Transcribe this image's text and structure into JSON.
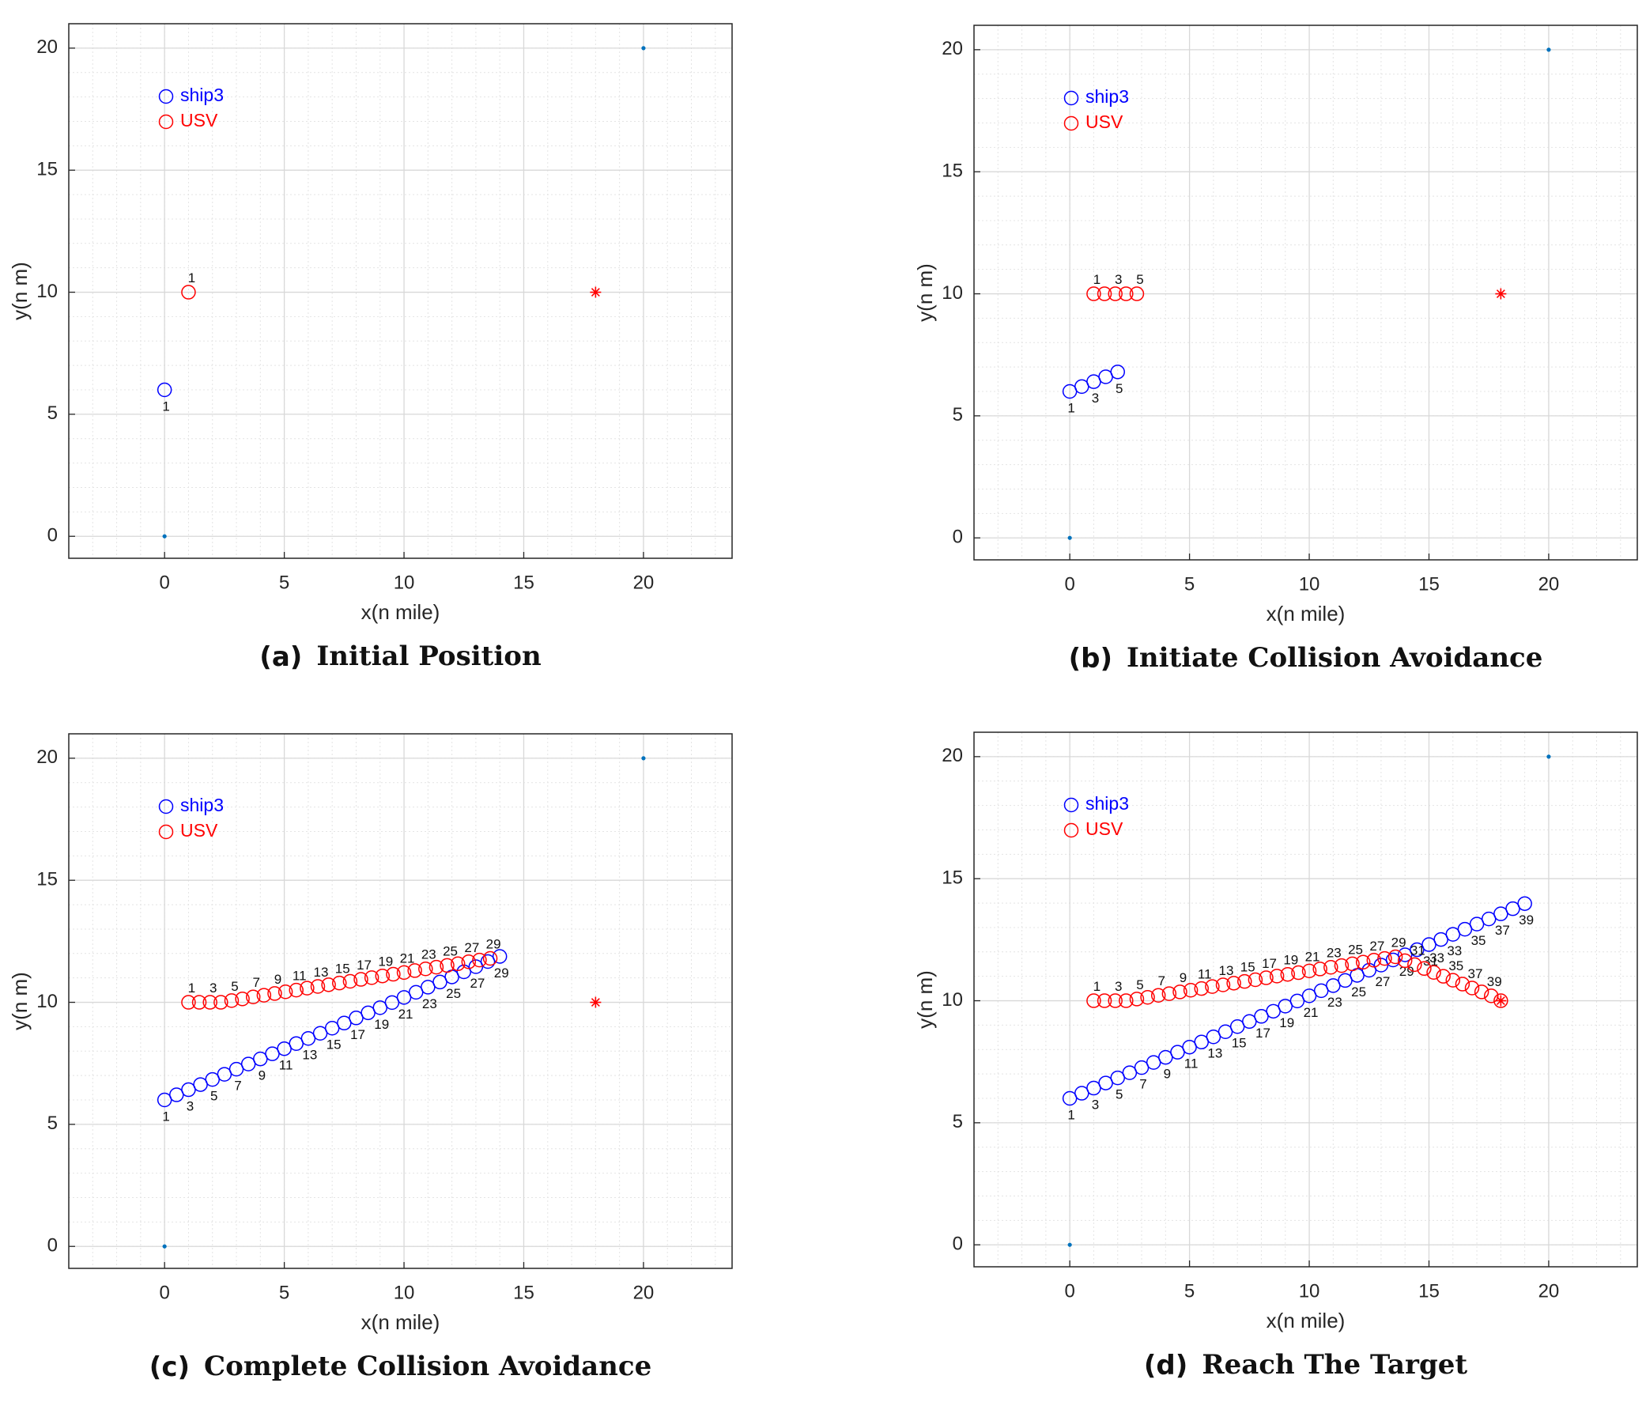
{
  "chart_data": [
    {
      "type": "scatter",
      "caption_label": "(a)",
      "caption": "Initial Position",
      "xlabel": "x(n mile)",
      "ylabel": "y(n m)",
      "xlim": [
        -4,
        23.7
      ],
      "ylim": [
        -0.9,
        21
      ],
      "xticks": [
        0,
        5,
        10,
        15,
        20
      ],
      "yticks": [
        0,
        5,
        10,
        15,
        20
      ],
      "grid": true,
      "minor_step": 1,
      "legend": "upper left",
      "series": [
        {
          "name": "ship3",
          "color": "#0000ff",
          "x": [
            0
          ],
          "y": [
            6
          ],
          "labels": [
            1
          ]
        },
        {
          "name": "USV",
          "color": "#ff0000",
          "x": [
            1
          ],
          "y": [
            10
          ],
          "labels": [
            1
          ]
        }
      ],
      "target": {
        "x": 18,
        "y": 10,
        "color": "#ff0000"
      },
      "reference_points": {
        "x": [
          0,
          20
        ],
        "y": [
          0,
          20
        ],
        "color": "#0072bd"
      }
    },
    {
      "type": "scatter",
      "caption_label": "(b)",
      "caption": "Initiate Collision Avoidance",
      "xlabel": "x(n mile)",
      "ylabel": "y(n m)",
      "xlim": [
        -4,
        23.7
      ],
      "ylim": [
        -0.9,
        21
      ],
      "xticks": [
        0,
        5,
        10,
        15,
        20
      ],
      "yticks": [
        0,
        5,
        10,
        15,
        20
      ],
      "grid": true,
      "minor_step": 1,
      "legend": "upper left",
      "series": [
        {
          "name": "ship3",
          "color": "#0000ff",
          "x": [
            0,
            0.5,
            1,
            1.5,
            2
          ],
          "y": [
            6,
            6.2,
            6.4,
            6.6,
            6.8
          ],
          "labels": [
            1,
            null,
            3,
            null,
            5
          ]
        },
        {
          "name": "USV",
          "color": "#ff0000",
          "x": [
            1,
            1.45,
            1.9,
            2.35,
            2.8
          ],
          "y": [
            10,
            10,
            10,
            10,
            10
          ],
          "labels": [
            1,
            null,
            3,
            null,
            5
          ]
        }
      ],
      "target": {
        "x": 18,
        "y": 10,
        "color": "#ff0000"
      },
      "reference_points": {
        "x": [
          0,
          20
        ],
        "y": [
          0,
          20
        ],
        "color": "#0072bd"
      }
    },
    {
      "type": "scatter",
      "caption_label": "(c)",
      "caption": "Complete Collision Avoidance",
      "xlabel": "x(n mile)",
      "ylabel": "y(n m)",
      "xlim": [
        -4,
        23.7
      ],
      "ylim": [
        -0.9,
        21
      ],
      "xticks": [
        0,
        5,
        10,
        15,
        20
      ],
      "yticks": [
        0,
        5,
        10,
        15,
        20
      ],
      "grid": true,
      "minor_step": 1,
      "legend": "upper left",
      "series": [
        {
          "name": "ship3",
          "color": "#0000ff",
          "x": [
            0,
            0.5,
            1,
            1.5,
            2,
            2.5,
            3,
            3.5,
            4,
            4.5,
            5,
            5.5,
            6,
            6.5,
            7,
            7.5,
            8,
            8.5,
            9,
            9.5,
            10,
            10.5,
            11,
            11.5,
            12,
            12.5,
            13,
            13.5,
            14
          ],
          "y": [
            6,
            6.21,
            6.42,
            6.63,
            6.84,
            7.05,
            7.26,
            7.47,
            7.68,
            7.89,
            8.1,
            8.31,
            8.52,
            8.73,
            8.94,
            9.15,
            9.36,
            9.57,
            9.78,
            9.99,
            10.2,
            10.41,
            10.62,
            10.83,
            11.04,
            11.25,
            11.46,
            11.67,
            11.88
          ],
          "labels": [
            1,
            null,
            3,
            null,
            5,
            null,
            7,
            null,
            9,
            null,
            11,
            null,
            13,
            null,
            15,
            null,
            17,
            null,
            19,
            null,
            21,
            null,
            23,
            null,
            25,
            null,
            27,
            null,
            29
          ]
        },
        {
          "name": "USV",
          "color": "#ff0000",
          "x": [
            1,
            1.45,
            1.9,
            2.35,
            2.8,
            3.25,
            3.7,
            4.15,
            4.6,
            5.05,
            5.5,
            5.95,
            6.4,
            6.85,
            7.3,
            7.75,
            8.2,
            8.65,
            9.1,
            9.55,
            10,
            10.45,
            10.9,
            11.35,
            11.8,
            12.25,
            12.7,
            13.15,
            13.6
          ],
          "y": [
            10,
            10,
            10,
            10,
            10.07,
            10.14,
            10.22,
            10.29,
            10.36,
            10.43,
            10.5,
            10.58,
            10.65,
            10.72,
            10.79,
            10.86,
            10.94,
            11.01,
            11.08,
            11.15,
            11.22,
            11.3,
            11.37,
            11.44,
            11.51,
            11.58,
            11.66,
            11.73,
            11.8
          ],
          "labels": [
            1,
            null,
            3,
            null,
            5,
            null,
            7,
            null,
            9,
            null,
            11,
            null,
            13,
            null,
            15,
            null,
            17,
            null,
            19,
            null,
            21,
            null,
            23,
            null,
            25,
            null,
            27,
            null,
            29
          ]
        }
      ],
      "target": {
        "x": 18,
        "y": 10,
        "color": "#ff0000"
      },
      "reference_points": {
        "x": [
          0,
          20
        ],
        "y": [
          0,
          20
        ],
        "color": "#0072bd"
      }
    },
    {
      "type": "scatter",
      "caption_label": "(d)",
      "caption": "Reach The Target",
      "xlabel": "x(n mile)",
      "ylabel": "y(n m)",
      "xlim": [
        -4,
        23.7
      ],
      "ylim": [
        -0.9,
        21
      ],
      "xticks": [
        0,
        5,
        10,
        15,
        20
      ],
      "yticks": [
        0,
        5,
        10,
        15,
        20
      ],
      "grid": true,
      "minor_step": 1,
      "legend": "upper left",
      "series": [
        {
          "name": "ship3",
          "color": "#0000ff",
          "x": [
            0,
            0.5,
            1,
            1.5,
            2,
            2.5,
            3,
            3.5,
            4,
            4.5,
            5,
            5.5,
            6,
            6.5,
            7,
            7.5,
            8,
            8.5,
            9,
            9.5,
            10,
            10.5,
            11,
            11.5,
            12,
            12.5,
            13,
            13.5,
            14,
            14.5,
            15,
            15.5,
            16,
            16.5,
            17,
            17.5,
            18,
            18.5,
            19
          ],
          "y": [
            6,
            6.21,
            6.42,
            6.63,
            6.84,
            7.05,
            7.26,
            7.47,
            7.68,
            7.89,
            8.1,
            8.31,
            8.52,
            8.73,
            8.94,
            9.15,
            9.36,
            9.57,
            9.78,
            9.99,
            10.2,
            10.41,
            10.62,
            10.83,
            11.04,
            11.25,
            11.46,
            11.67,
            11.88,
            12.09,
            12.3,
            12.51,
            12.72,
            12.93,
            13.14,
            13.35,
            13.56,
            13.77,
            13.98
          ],
          "labels": [
            1,
            null,
            3,
            null,
            5,
            null,
            7,
            null,
            9,
            null,
            11,
            null,
            13,
            null,
            15,
            null,
            17,
            null,
            19,
            null,
            21,
            null,
            23,
            null,
            25,
            null,
            27,
            null,
            29,
            null,
            31,
            null,
            33,
            null,
            35,
            null,
            37,
            null,
            39
          ]
        },
        {
          "name": "USV",
          "color": "#ff0000",
          "x": [
            1,
            1.45,
            1.9,
            2.35,
            2.8,
            3.25,
            3.7,
            4.15,
            4.6,
            5.05,
            5.5,
            5.95,
            6.4,
            6.85,
            7.3,
            7.75,
            8.2,
            8.65,
            9.1,
            9.55,
            10,
            10.45,
            10.9,
            11.35,
            11.8,
            12.25,
            12.7,
            13.15,
            13.6,
            14,
            14.4,
            14.8,
            15.2,
            15.6,
            16,
            16.4,
            16.8,
            17.2,
            17.6,
            18
          ],
          "y": [
            10,
            10,
            10,
            10,
            10.07,
            10.14,
            10.22,
            10.29,
            10.36,
            10.43,
            10.5,
            10.58,
            10.65,
            10.72,
            10.79,
            10.86,
            10.94,
            11.01,
            11.08,
            11.15,
            11.22,
            11.3,
            11.37,
            11.44,
            11.51,
            11.58,
            11.66,
            11.73,
            11.8,
            11.64,
            11.48,
            11.32,
            11.16,
            11,
            10.84,
            10.68,
            10.52,
            10.36,
            10.2,
            10
          ],
          "labels": [
            1,
            null,
            3,
            null,
            5,
            null,
            7,
            null,
            9,
            null,
            11,
            null,
            13,
            null,
            15,
            null,
            17,
            null,
            19,
            null,
            21,
            null,
            23,
            null,
            25,
            null,
            27,
            null,
            29,
            null,
            31,
            null,
            33,
            null,
            35,
            null,
            37,
            null,
            39,
            null
          ]
        }
      ],
      "target": {
        "x": 18,
        "y": 10,
        "color": "#ff0000"
      },
      "reference_points": {
        "x": [
          0,
          20
        ],
        "y": [
          0,
          20
        ],
        "color": "#0072bd"
      }
    }
  ]
}
